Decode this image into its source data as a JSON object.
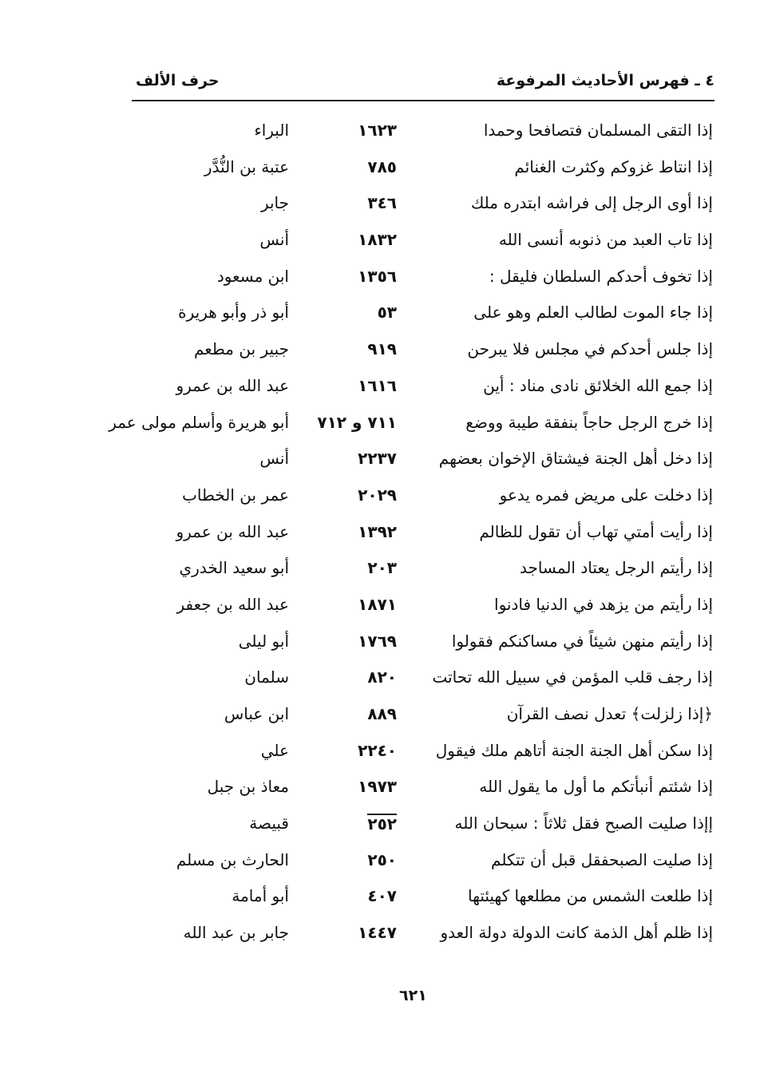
{
  "header": {
    "section_title": "٤ ـ فهرس الأحاديث المرفوعة",
    "letter_title": "حرف الألف"
  },
  "entries": [
    {
      "hadith": "إذا التقى المسلمان فتصافحا وحمدا",
      "number": "١٦٢٣",
      "narrator": "البراء"
    },
    {
      "hadith": "إذا انتاط غزوكم وكثرت الغنائم",
      "number": "٧٨٥",
      "narrator": "عتبة بن النُّدَّر"
    },
    {
      "hadith": "إذا أوى الرجل إلى فراشه ابتدره ملك",
      "number": "٣٤٦",
      "narrator": "جابر"
    },
    {
      "hadith": "إذا تاب العبد من ذنوبه أنسى الله",
      "number": "١٨٣٢",
      "narrator": "أنس"
    },
    {
      "hadith": "إذا تخوف أحدكم السلطان فليقل :",
      "number": "١٣٥٦",
      "narrator": "ابن مسعود"
    },
    {
      "hadith": "إذا جاء الموت لطالب العلم وهو على",
      "number": "٥٣",
      "narrator": "أبو ذر وأبو هريرة"
    },
    {
      "hadith": "إذا جلس أحدكم في مجلس فلا يبرحن",
      "number": "٩١٩",
      "narrator": "جبير بن مطعم"
    },
    {
      "hadith": "إذا جمع الله الخلائق نادى مناد : أين",
      "number": "١٦١٦",
      "narrator": "عبد الله بن عمرو"
    },
    {
      "hadith": "إذا خرج الرجل حاجاً بنفقة طيبة ووضع",
      "number": "٧١١ و ٧١٢",
      "narrator": "أبو هريرة وأسلم مولى عمر"
    },
    {
      "hadith": "إذا دخل أهل الجنة فيشتاق الإخوان بعضهم",
      "number": "٢٢٣٧",
      "narrator": "أنس"
    },
    {
      "hadith": "إذا دخلت على مريض فمره يدعو",
      "number": "٢٠٢٩",
      "narrator": "عمر بن الخطاب"
    },
    {
      "hadith": "إذا رأيت أمتي تهاب أن تقول للظالم",
      "number": "١٣٩٢",
      "narrator": "عبد الله بن عمرو"
    },
    {
      "hadith": "إذا رأيتم الرجل يعتاد المساجد",
      "number": "٢٠٣",
      "narrator": "أبو سعيد الخدري"
    },
    {
      "hadith": "إذا رأيتم من يزهد في الدنيا فادنوا",
      "number": "١٨٧١",
      "narrator": "عبد الله بن جعفر"
    },
    {
      "hadith": "إذا رأيتم منهن شيئاً في مساكنكم فقولوا",
      "number": "١٧٦٩",
      "narrator": "أبو ليلى"
    },
    {
      "hadith": "إذا رجف قلب المؤمن في سبيل الله تحاتت",
      "number": "٨٢٠",
      "narrator": "سلمان"
    },
    {
      "hadith": "﴿إذا زلزلت﴾ تعدل نصف القرآن",
      "number": "٨٨٩",
      "narrator": "ابن عباس"
    },
    {
      "hadith": "إذا سكن أهل الجنة الجنة أتاهم ملك فيقول",
      "number": "٢٢٤٠",
      "narrator": "علي"
    },
    {
      "hadith": "إذا شئتم أنبأتكم ما أول ما يقول الله",
      "number": "١٩٧٣",
      "narrator": "معاذ بن جبل"
    },
    {
      "hadith": "إإذا صليت الصبح فقل ثلاثاً : سبحان الله",
      "number": "٢٥٢",
      "narrator": "قبيصة",
      "overlined": true
    },
    {
      "hadith": "إذا صليت الصبحفقل قبل أن تتكلم",
      "number": "٢٥٠",
      "narrator": "الحارث بن مسلم"
    },
    {
      "hadith": "إذا طلعت الشمس من مطلعها كهيئتها",
      "number": "٤٠٧",
      "narrator": "أبو أمامة"
    },
    {
      "hadith": "إذا ظلم أهل الذمة كانت الدولة دولة العدو",
      "number": "١٤٤٧",
      "narrator": "جابر بن عبد الله"
    }
  ],
  "footer": {
    "page_number": "٦٢١"
  }
}
